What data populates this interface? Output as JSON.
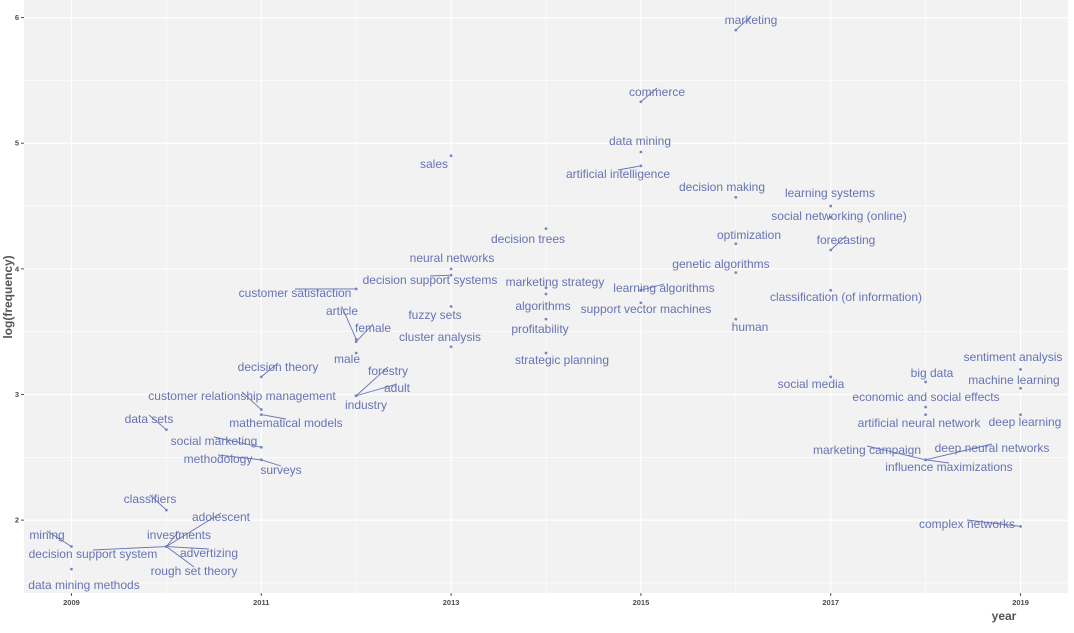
{
  "chart_data": {
    "type": "scatter",
    "title": "",
    "xlabel": "year",
    "ylabel": "log(frequency)",
    "xlim": [
      2008.5,
      2019.5
    ],
    "ylim": [
      1.42,
      6.14
    ],
    "x_ticks": [
      "2009",
      "2011",
      "2013",
      "2015",
      "2017",
      "2019"
    ],
    "y_ticks": [
      "2",
      "3",
      "4",
      "5",
      "6"
    ],
    "grid": true,
    "background": "#f2f2f2",
    "point_color": "#7a86c2",
    "label_color": "#6673b3",
    "points": [
      {
        "label": "marketing",
        "x": 2016.0,
        "y": 5.9
      },
      {
        "label": "commerce",
        "x": 2015.0,
        "y": 5.33
      },
      {
        "label": "data mining",
        "x": 2015.0,
        "y": 4.93
      },
      {
        "label": "sales",
        "x": 2013.0,
        "y": 4.9
      },
      {
        "label": "artificial intelligence",
        "x": 2015.0,
        "y": 4.82
      },
      {
        "label": "decision making",
        "x": 2016.0,
        "y": 4.57
      },
      {
        "label": "learning systems",
        "x": 2017.0,
        "y": 4.5
      },
      {
        "label": "social networking (online)",
        "x": 2017.0,
        "y": 4.41
      },
      {
        "label": "decision trees",
        "x": 2014.0,
        "y": 4.32
      },
      {
        "label": "optimization",
        "x": 2016.0,
        "y": 4.2
      },
      {
        "label": "forecasting",
        "x": 2017.0,
        "y": 4.15
      },
      {
        "label": "neural networks",
        "x": 2013.0,
        "y": 4.0
      },
      {
        "label": "genetic algorithms",
        "x": 2016.0,
        "y": 3.97
      },
      {
        "label": "decision support systems",
        "x": 2013.0,
        "y": 3.95
      },
      {
        "label": "marketing strategy",
        "x": 2014.0,
        "y": 3.85
      },
      {
        "label": "learning algorithms",
        "x": 2015.0,
        "y": 3.83
      },
      {
        "label": "customer satisfaction",
        "x": 2012.0,
        "y": 3.84
      },
      {
        "label": "classification (of information)",
        "x": 2017.0,
        "y": 3.83
      },
      {
        "label": "algorithms",
        "x": 2014.0,
        "y": 3.8
      },
      {
        "label": "support vector machines",
        "x": 2015.0,
        "y": 3.73
      },
      {
        "label": "fuzzy sets",
        "x": 2013.0,
        "y": 3.7
      },
      {
        "label": "article",
        "x": 2012.0,
        "y": 3.44
      },
      {
        "label": "female",
        "x": 2012.0,
        "y": 3.42
      },
      {
        "label": "human",
        "x": 2016.0,
        "y": 3.6
      },
      {
        "label": "profitability",
        "x": 2014.0,
        "y": 3.6
      },
      {
        "label": "cluster analysis",
        "x": 2013.0,
        "y": 3.38
      },
      {
        "label": "male",
        "x": 2012.0,
        "y": 3.33
      },
      {
        "label": "decision theory",
        "x": 2011.0,
        "y": 3.14
      },
      {
        "label": "strategic planning",
        "x": 2014.0,
        "y": 3.33
      },
      {
        "label": "sentiment analysis",
        "x": 2019.0,
        "y": 3.2
      },
      {
        "label": "forestry",
        "x": 2012.0,
        "y": 2.99
      },
      {
        "label": "adult",
        "x": 2012.0,
        "y": 2.99
      },
      {
        "label": "industry",
        "x": 2012.0,
        "y": 2.99
      },
      {
        "label": "big data",
        "x": 2018.0,
        "y": 3.1
      },
      {
        "label": "machine learning",
        "x": 2019.0,
        "y": 3.05
      },
      {
        "label": "social media",
        "x": 2017.0,
        "y": 3.14
      },
      {
        "label": "customer relationship management",
        "x": 2011.0,
        "y": 2.88
      },
      {
        "label": "economic and social effects",
        "x": 2018.0,
        "y": 2.9
      },
      {
        "label": "data sets",
        "x": 2010.0,
        "y": 2.72
      },
      {
        "label": "mathematical models",
        "x": 2011.0,
        "y": 2.84
      },
      {
        "label": "artificial neural network",
        "x": 2018.0,
        "y": 2.84
      },
      {
        "label": "deep learning",
        "x": 2019.0,
        "y": 2.84
      },
      {
        "label": "social marketing",
        "x": 2011.0,
        "y": 2.58
      },
      {
        "label": "methodology",
        "x": 2011.0,
        "y": 2.48
      },
      {
        "label": "surveys",
        "x": 2011.0,
        "y": 2.48
      },
      {
        "label": "marketing campaign",
        "x": 2018.0,
        "y": 2.48
      },
      {
        "label": "deep neural networks",
        "x": 2018.0,
        "y": 2.48
      },
      {
        "label": "influence maximizations",
        "x": 2018.0,
        "y": 2.48
      },
      {
        "label": "classifiers",
        "x": 2010.0,
        "y": 2.08
      },
      {
        "label": "complex networks",
        "x": 2019.0,
        "y": 1.95
      },
      {
        "label": "adolescent",
        "x": 2010.0,
        "y": 1.79
      },
      {
        "label": "investments",
        "x": 2010.0,
        "y": 1.79
      },
      {
        "label": "mining",
        "x": 2009.0,
        "y": 1.79
      },
      {
        "label": "advertizing",
        "x": 2010.0,
        "y": 1.79
      },
      {
        "label": "decision support system",
        "x": 2010.0,
        "y": 1.79
      },
      {
        "label": "rough set theory",
        "x": 2010.0,
        "y": 1.79
      },
      {
        "label": "data mining methods",
        "x": 2009.0,
        "y": 1.61
      }
    ]
  }
}
